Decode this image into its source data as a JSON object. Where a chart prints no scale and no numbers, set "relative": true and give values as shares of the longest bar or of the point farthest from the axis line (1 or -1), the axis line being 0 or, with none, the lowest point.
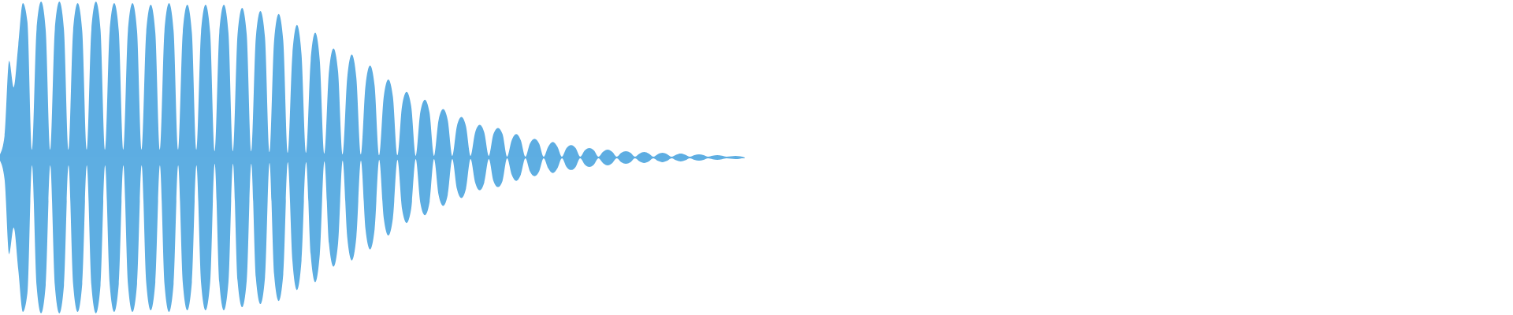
{
  "chart_data": {
    "type": "area",
    "relative": true,
    "categories": [
      null,
      null,
      null,
      null,
      null,
      null,
      null,
      null,
      null,
      null,
      null,
      null,
      null,
      null,
      null,
      null,
      null,
      null,
      null,
      null,
      null,
      null,
      null,
      null,
      null,
      null,
      null,
      null,
      null,
      null,
      null,
      null,
      null,
      null,
      null,
      null,
      null,
      null,
      null,
      null,
      null,
      null,
      null,
      null,
      null,
      null,
      null,
      null,
      null,
      null,
      null,
      null,
      null,
      null,
      null,
      null,
      null,
      null,
      null,
      null,
      null,
      null,
      null,
      null,
      null,
      null,
      null,
      null,
      null,
      null,
      null,
      null,
      null,
      null,
      null,
      null,
      null,
      null,
      null,
      null,
      null,
      null,
      null,
      null,
      null,
      null,
      null,
      null,
      null,
      null,
      null,
      null,
      null,
      null,
      null,
      null,
      null,
      null,
      null,
      null,
      null,
      null,
      null,
      null,
      null,
      null,
      null,
      null,
      null,
      null,
      null,
      null,
      null,
      null,
      null,
      null,
      null,
      null,
      null,
      null,
      null,
      null,
      null,
      null,
      null,
      null,
      null,
      null,
      null,
      null,
      null,
      null,
      null,
      null,
      null,
      null,
      null,
      null,
      null,
      null,
      null,
      null,
      null,
      null,
      null,
      null,
      null,
      null,
      null,
      null,
      null,
      null,
      null,
      null,
      null,
      null,
      null,
      null,
      null,
      null,
      null,
      null,
      null,
      null
    ],
    "series": [
      {
        "color": "#5dade2",
        "values": [
          0.02,
          0.14,
          0.62,
          0.45,
          0.72,
          0.99,
          0.87,
          0.05,
          0.82,
          1.0,
          0.82,
          0.05,
          0.82,
          1.0,
          0.82,
          0.05,
          0.81,
          0.99,
          0.81,
          0.05,
          0.82,
          1.0,
          0.82,
          0.05,
          0.81,
          0.99,
          0.81,
          0.05,
          0.81,
          0.99,
          0.81,
          0.05,
          0.8,
          0.98,
          0.8,
          0.05,
          0.81,
          0.99,
          0.81,
          0.05,
          0.8,
          0.98,
          0.8,
          0.05,
          0.8,
          0.98,
          0.8,
          0.04,
          0.8,
          0.98,
          0.8,
          0.04,
          0.79,
          0.96,
          0.79,
          0.04,
          0.77,
          0.94,
          0.77,
          0.035,
          0.75,
          0.92,
          0.75,
          0.03,
          0.66,
          0.85,
          0.66,
          0.03,
          0.62,
          0.8,
          0.62,
          0.025,
          0.55,
          0.7,
          0.55,
          0.02,
          0.51,
          0.66,
          0.51,
          0.02,
          0.46,
          0.59,
          0.46,
          0.015,
          0.39,
          0.5,
          0.39,
          0.015,
          0.33,
          0.42,
          0.33,
          0.01,
          0.29,
          0.37,
          0.29,
          0.01,
          0.24,
          0.31,
          0.24,
          0.01,
          0.2,
          0.26,
          0.2,
          0.01,
          0.16,
          0.21,
          0.16,
          0.01,
          0.15,
          0.19,
          0.15,
          0.005,
          0.11,
          0.15,
          0.11,
          0.005,
          0.09,
          0.12,
          0.09,
          0.005,
          0.07,
          0.1,
          0.07,
          0.005,
          0.06,
          0.08,
          0.06,
          0.005,
          0.045,
          0.06,
          0.045,
          0.005,
          0.036,
          0.05,
          0.036,
          0.005,
          0.03,
          0.04,
          0.03,
          0.005,
          0.025,
          0.035,
          0.025,
          0.005,
          0.022,
          0.03,
          0.022,
          0.005,
          0.018,
          0.025,
          0.018,
          0.005,
          0.015,
          0.02,
          0.015,
          0.005,
          0.011,
          0.015,
          0.011,
          0.005,
          0.007,
          0.01,
          0.007,
          0
        ]
      },
      {
        "color": "#5eaee2",
        "values": [
          -0.02,
          -0.14,
          -0.62,
          -0.45,
          -0.72,
          -0.99,
          -0.87,
          -0.05,
          -0.82,
          -1.0,
          -0.82,
          -0.05,
          -0.82,
          -1.0,
          -0.82,
          -0.05,
          -0.81,
          -0.99,
          -0.81,
          -0.05,
          -0.82,
          -1.0,
          -0.82,
          -0.05,
          -0.81,
          -0.99,
          -0.81,
          -0.05,
          -0.81,
          -0.99,
          -0.81,
          -0.05,
          -0.8,
          -0.98,
          -0.8,
          -0.05,
          -0.81,
          -0.99,
          -0.81,
          -0.05,
          -0.8,
          -0.98,
          -0.8,
          -0.05,
          -0.8,
          -0.98,
          -0.8,
          -0.04,
          -0.8,
          -0.98,
          -0.8,
          -0.04,
          -0.79,
          -0.96,
          -0.79,
          -0.04,
          -0.77,
          -0.94,
          -0.77,
          -0.035,
          -0.75,
          -0.92,
          -0.75,
          -0.03,
          -0.66,
          -0.85,
          -0.66,
          -0.03,
          -0.62,
          -0.8,
          -0.62,
          -0.025,
          -0.55,
          -0.7,
          -0.55,
          -0.02,
          -0.51,
          -0.66,
          -0.51,
          -0.02,
          -0.46,
          -0.59,
          -0.46,
          -0.015,
          -0.39,
          -0.5,
          -0.39,
          -0.015,
          -0.33,
          -0.42,
          -0.33,
          -0.01,
          -0.29,
          -0.37,
          -0.29,
          -0.01,
          -0.24,
          -0.31,
          -0.24,
          -0.01,
          -0.2,
          -0.26,
          -0.2,
          -0.01,
          -0.16,
          -0.21,
          -0.16,
          -0.01,
          -0.15,
          -0.19,
          -0.15,
          -0.005,
          -0.11,
          -0.15,
          -0.11,
          -0.005,
          -0.09,
          -0.12,
          -0.09,
          -0.005,
          -0.07,
          -0.1,
          -0.07,
          -0.005,
          -0.06,
          -0.08,
          -0.06,
          -0.005,
          -0.045,
          -0.06,
          -0.045,
          -0.005,
          -0.036,
          -0.05,
          -0.036,
          -0.005,
          -0.03,
          -0.04,
          -0.03,
          -0.005,
          -0.025,
          -0.035,
          -0.025,
          -0.005,
          -0.022,
          -0.03,
          -0.022,
          -0.005,
          -0.018,
          -0.025,
          -0.018,
          -0.005,
          -0.015,
          -0.02,
          -0.015,
          -0.005,
          -0.011,
          -0.015,
          -0.011,
          -0.005,
          -0.007,
          -0.01,
          -0.007,
          0
        ]
      }
    ]
  }
}
